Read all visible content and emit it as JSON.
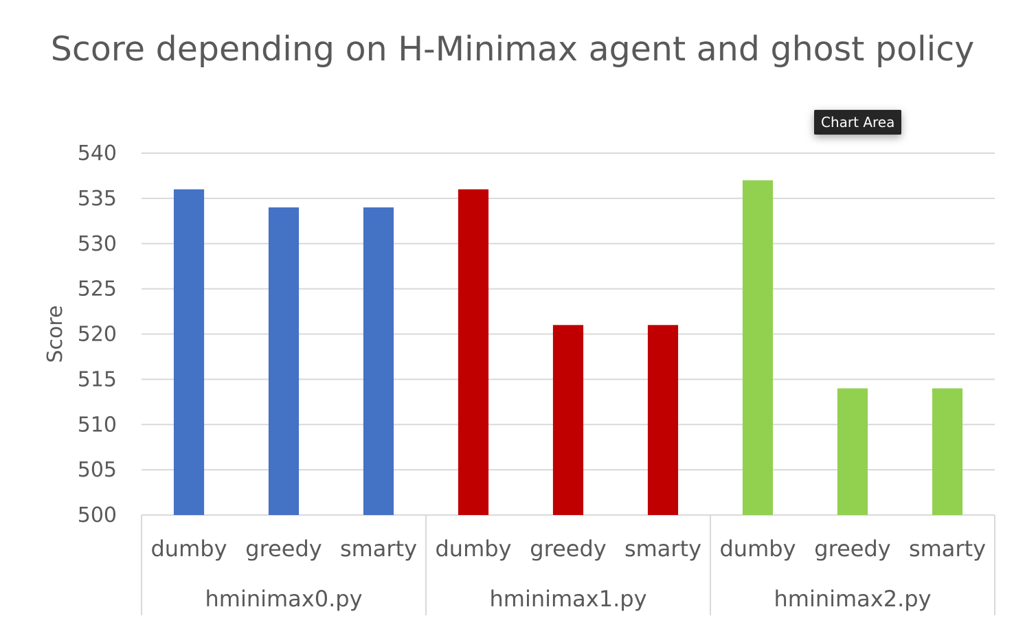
{
  "chart_data": {
    "type": "bar",
    "title": "Score depending on H-Minimax agent and ghost policy",
    "ylabel": "Score",
    "xlabel": "",
    "ylim": [
      500,
      540
    ],
    "yticks": [
      500,
      505,
      510,
      515,
      520,
      525,
      530,
      535,
      540
    ],
    "grid": true,
    "legend": "none",
    "groups": [
      {
        "label": "hminimax0.py",
        "color": "#4472C4",
        "categories": [
          "dumby",
          "greedy",
          "smarty"
        ],
        "values": [
          536,
          534,
          534
        ]
      },
      {
        "label": "hminimax1.py",
        "color": "#C00000",
        "categories": [
          "dumby",
          "greedy",
          "smarty"
        ],
        "values": [
          536,
          521,
          521
        ]
      },
      {
        "label": "hminimax2.py",
        "color": "#92D050",
        "categories": [
          "dumby",
          "greedy",
          "smarty"
        ],
        "values": [
          537,
          514,
          514
        ]
      }
    ]
  },
  "tooltip": {
    "label": "Chart Area"
  }
}
